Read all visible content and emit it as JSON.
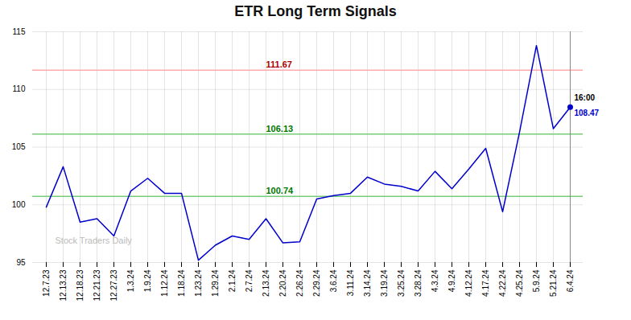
{
  "chart_data": {
    "type": "line",
    "title": "ETR Long Term Signals",
    "categories": [
      "12.7.23",
      "12.13.23",
      "12.18.23",
      "12.21.23",
      "12.27.23",
      "1.3.24",
      "1.9.24",
      "1.12.24",
      "1.18.24",
      "1.23.24",
      "1.29.24",
      "2.1.24",
      "2.7.24",
      "2.13.24",
      "2.20.24",
      "2.26.24",
      "2.29.24",
      "3.6.24",
      "3.11.24",
      "3.14.24",
      "3.19.24",
      "3.25.24",
      "3.28.24",
      "4.3.24",
      "4.9.24",
      "4.12.24",
      "4.17.24",
      "4.22.24",
      "4.25.24",
      "5.9.24",
      "5.21.24",
      "6.4.24"
    ],
    "values": [
      99.8,
      103.3,
      98.5,
      98.8,
      97.3,
      101.2,
      102.3,
      101.0,
      101.0,
      95.2,
      96.5,
      97.3,
      97.0,
      98.8,
      96.7,
      96.8,
      100.5,
      100.8,
      101.0,
      102.4,
      101.8,
      101.6,
      101.2,
      102.9,
      101.4,
      103.1,
      104.9,
      99.4,
      106.3,
      113.8,
      106.6,
      108.47
    ],
    "color": "#0000cc",
    "ylim": [
      95,
      115
    ],
    "yticks": [
      95,
      100,
      105,
      110,
      115
    ],
    "grid": true,
    "reference_lines": [
      {
        "value": 111.67,
        "color": "#ffaaaa",
        "label_color": "#aa0000"
      },
      {
        "value": 106.13,
        "color": "#77cc77",
        "label_color": "#007700"
      },
      {
        "value": 100.74,
        "color": "#77cc77",
        "label_color": "#007700"
      }
    ],
    "last_point": {
      "label": "16:00",
      "value": 108.47,
      "color": "#0000cc",
      "line_color": "#888888"
    },
    "watermark": "Stock Traders Daily",
    "watermark_color": "#bbbbbb"
  }
}
